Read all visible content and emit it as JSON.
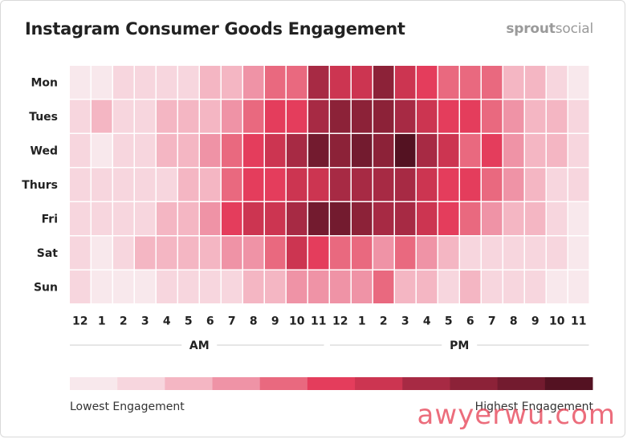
{
  "title": "Instagram Consumer Goods Engagement",
  "brand": {
    "bold": "sprout",
    "light": "social"
  },
  "watermark": "awyerwu.com",
  "legend": {
    "low_label": "Lowest Engagement",
    "high_label": "Highest Engagement",
    "colors": [
      "#f8e8ec",
      "#f7d6de",
      "#f4b6c3",
      "#ef93a6",
      "#e9697f",
      "#e43d5c",
      "#cc3551",
      "#a72a44",
      "#8c2238",
      "#731b2f",
      "#541222"
    ]
  },
  "chart_data": {
    "type": "heatmap",
    "title": "Instagram Consumer Goods Engagement",
    "rows": [
      "Mon",
      "Tues",
      "Wed",
      "Thurs",
      "Fri",
      "Sat",
      "Sun"
    ],
    "columns": [
      "12",
      "1",
      "2",
      "3",
      "4",
      "5",
      "6",
      "7",
      "8",
      "9",
      "10",
      "11",
      "12",
      "1",
      "2",
      "3",
      "4",
      "5",
      "6",
      "7",
      "8",
      "9",
      "10",
      "11"
    ],
    "column_groups": [
      {
        "label": "AM",
        "from": 0,
        "to": 11
      },
      {
        "label": "PM",
        "from": 12,
        "to": 23
      }
    ],
    "scale_levels": 11,
    "values": [
      [
        0,
        0,
        1,
        1,
        1,
        1,
        2,
        2,
        3,
        4,
        4,
        7,
        6,
        6,
        8,
        6,
        5,
        4,
        4,
        4,
        2,
        2,
        1,
        0
      ],
      [
        1,
        2,
        1,
        1,
        2,
        2,
        2,
        3,
        4,
        5,
        5,
        7,
        8,
        8,
        8,
        7,
        6,
        5,
        5,
        4,
        3,
        2,
        2,
        1
      ],
      [
        1,
        0,
        1,
        1,
        2,
        2,
        3,
        4,
        5,
        6,
        7,
        9,
        8,
        9,
        8,
        10,
        7,
        6,
        4,
        5,
        3,
        2,
        2,
        1
      ],
      [
        1,
        1,
        1,
        1,
        1,
        2,
        2,
        4,
        5,
        5,
        6,
        6,
        7,
        7,
        7,
        7,
        6,
        5,
        5,
        4,
        3,
        2,
        1,
        1
      ],
      [
        1,
        1,
        1,
        1,
        2,
        2,
        3,
        5,
        6,
        6,
        7,
        9,
        9,
        8,
        7,
        7,
        6,
        5,
        4,
        3,
        2,
        2,
        1,
        0
      ],
      [
        1,
        0,
        1,
        2,
        2,
        2,
        2,
        3,
        3,
        4,
        6,
        5,
        4,
        4,
        3,
        4,
        3,
        2,
        1,
        1,
        1,
        1,
        1,
        0
      ],
      [
        1,
        0,
        0,
        0,
        1,
        1,
        1,
        1,
        2,
        2,
        3,
        3,
        3,
        3,
        4,
        2,
        2,
        1,
        2,
        1,
        1,
        1,
        0,
        0
      ]
    ]
  }
}
